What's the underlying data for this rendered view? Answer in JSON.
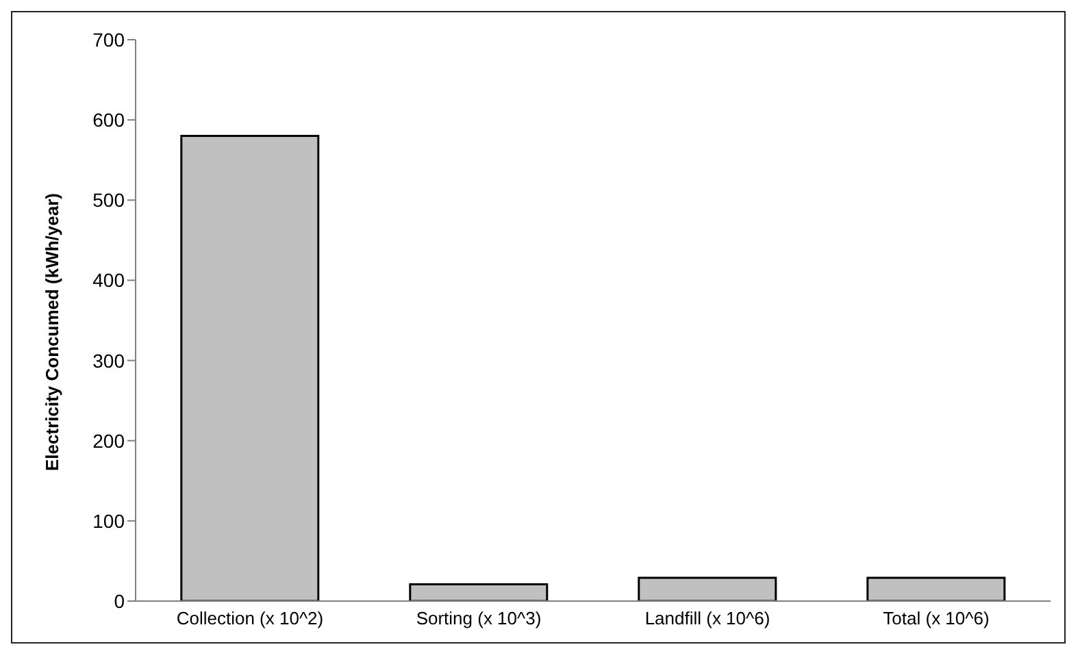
{
  "chart_data": {
    "type": "bar",
    "ylabel": "Electricity Concumed (kWh/year)",
    "categories": [
      "Collection (x 10^2)",
      "Sorting (x 10^3)",
      "Landfill (x 10^6)",
      "Total (x 10^6)"
    ],
    "values": [
      580,
      21,
      29,
      29
    ],
    "color": "#c0c0c0",
    "ylim": [
      0,
      700
    ],
    "yticks": [
      0,
      100,
      200,
      300,
      400,
      500,
      600,
      700
    ],
    "grid": false,
    "legend": false
  }
}
